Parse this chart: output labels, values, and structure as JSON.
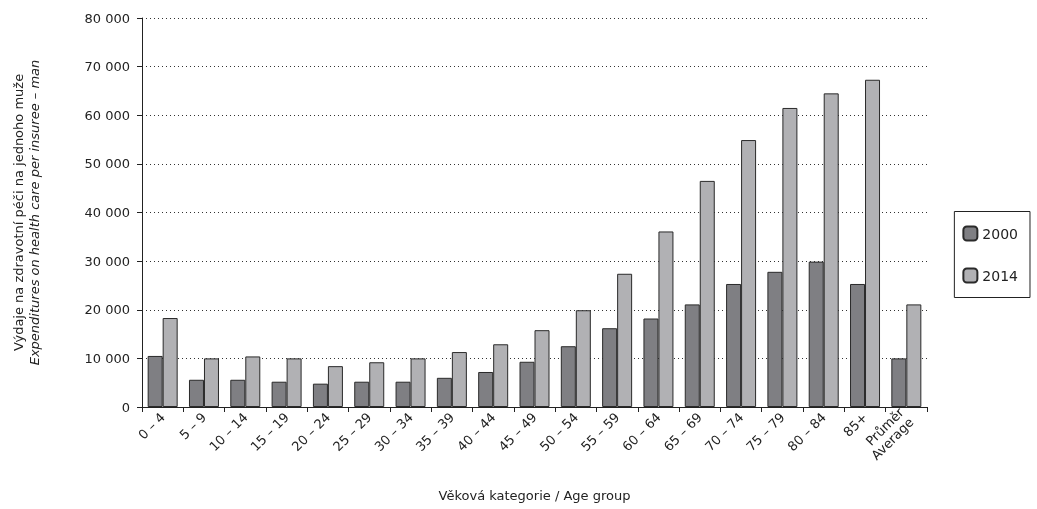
{
  "chart_data": {
    "type": "bar",
    "xlabel": "Věková kategorie / Age group",
    "ylabel": "Výdaje na zdravotní péči na jednoho muže\nExpenditures on health care per insuree – man",
    "categories": [
      "0 – 4",
      "5 – 9",
      "10 – 14",
      "15 – 19",
      "20 – 24",
      "25 – 29",
      "30 – 34",
      "35 – 39",
      "40 – 44",
      "45 – 49",
      "50 – 54",
      "55 – 59",
      "60 – 64",
      "65 – 69",
      "70 – 74",
      "75 – 79",
      "80 – 84",
      "85+",
      "Průměr\nAverage"
    ],
    "series": [
      {
        "name": "2000",
        "color": "#7f7f83",
        "values": [
          10500,
          5600,
          5600,
          5200,
          4800,
          5200,
          5200,
          6000,
          7200,
          9300,
          12500,
          16200,
          18200,
          21100,
          25300,
          27800,
          29900,
          25300,
          10000
        ]
      },
      {
        "name": "2014",
        "color": "#b1b1b4",
        "values": [
          18300,
          10000,
          10400,
          10000,
          8400,
          9200,
          10000,
          11300,
          12900,
          15800,
          19900,
          27400,
          36100,
          46500,
          54900,
          61500,
          64500,
          67300,
          21100
        ]
      }
    ],
    "ylim": [
      0,
      80000
    ],
    "yticks": [
      {
        "value": 0,
        "label": "0"
      },
      {
        "value": 10000,
        "label": "10 000"
      },
      {
        "value": 20000,
        "label": "20 000"
      },
      {
        "value": 30000,
        "label": "30 000"
      },
      {
        "value": 40000,
        "label": "40 000"
      },
      {
        "value": 50000,
        "label": "50 000"
      },
      {
        "value": 60000,
        "label": "60 000"
      },
      {
        "value": 70000,
        "label": "70 000"
      },
      {
        "value": 80000,
        "label": "80 000"
      }
    ],
    "grid": "y",
    "legend": "right"
  }
}
